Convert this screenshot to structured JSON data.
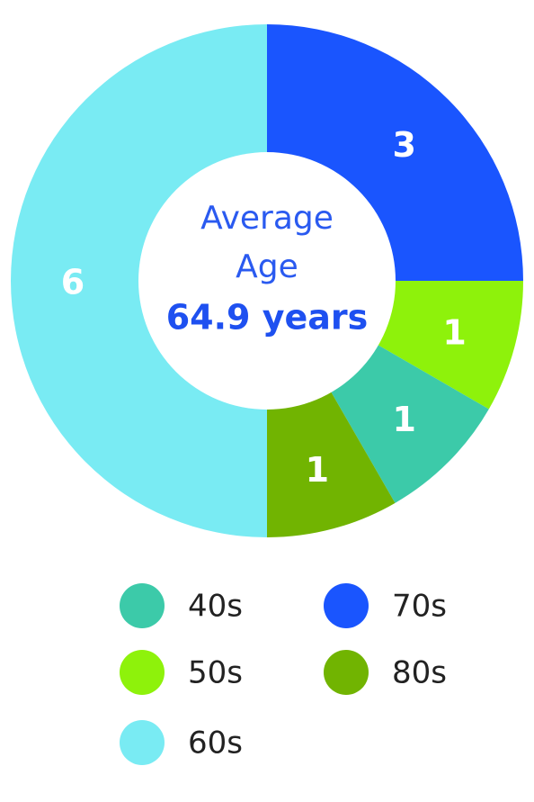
{
  "chart_data": {
    "type": "donut",
    "categories": [
      "40s",
      "50s",
      "60s",
      "70s",
      "80s"
    ],
    "values": [
      1,
      1,
      6,
      3,
      1
    ],
    "colors": [
      "#3ccaa9",
      "#8ef20b",
      "#79ebf3",
      "#1a55fe",
      "#71b401"
    ],
    "center_title": [
      "Average",
      "Age"
    ],
    "center_value": {
      "value": 64.9,
      "label": "64.9 years"
    },
    "legend": true
  }
}
